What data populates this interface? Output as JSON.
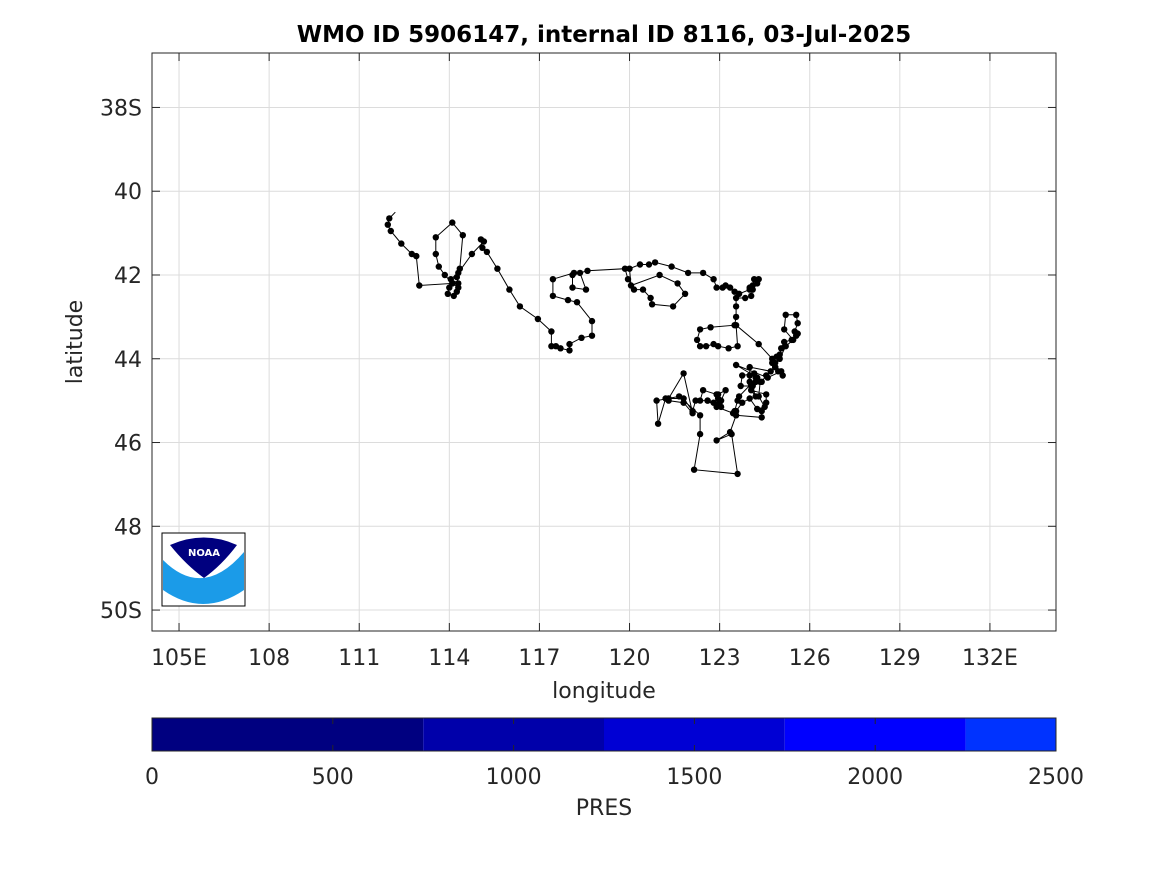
{
  "chart_data": {
    "type": "line",
    "title": "WMO ID 5906147, internal ID 8116, 03-Jul-2025",
    "xlabel": "longitude",
    "ylabel": "latitude",
    "xlim": [
      104.1,
      134.2
    ],
    "ylim": [
      50.5,
      36.7
    ],
    "y_axis_reversed": true,
    "x_ticks": [
      105,
      108,
      111,
      114,
      117,
      120,
      123,
      126,
      129,
      132
    ],
    "x_tick_labels": [
      "105E",
      "108",
      "111",
      "114",
      "117",
      "120",
      "123",
      "126",
      "129",
      "132E"
    ],
    "y_ticks": [
      38,
      40,
      42,
      44,
      46,
      48,
      50
    ],
    "y_tick_labels": [
      "38S",
      "40",
      "42",
      "44",
      "46",
      "48",
      "50S"
    ],
    "grid": true,
    "series": [
      {
        "marker": "dot",
        "color": "#000000",
        "points": [
          [
            112.2,
            40.5
          ],
          [
            112.0,
            40.65
          ],
          [
            111.95,
            40.8
          ],
          [
            112.05,
            40.95
          ],
          [
            112.4,
            41.25
          ],
          [
            112.75,
            41.5
          ],
          [
            112.9,
            41.55
          ],
          [
            113.0,
            42.25
          ],
          [
            114.1,
            42.2
          ],
          [
            114.0,
            42.3
          ],
          [
            113.95,
            42.45
          ],
          [
            114.15,
            42.5
          ],
          [
            114.25,
            42.4
          ],
          [
            114.3,
            42.3
          ],
          [
            114.1,
            42.2
          ],
          [
            113.85,
            42.0
          ],
          [
            113.65,
            41.8
          ],
          [
            113.55,
            41.5
          ],
          [
            113.55,
            41.1
          ],
          [
            114.1,
            40.75
          ],
          [
            114.45,
            41.05
          ],
          [
            114.35,
            41.85
          ],
          [
            114.25,
            42.05
          ],
          [
            114.3,
            42.2
          ],
          [
            114.05,
            42.1
          ],
          [
            114.3,
            41.95
          ],
          [
            114.75,
            41.5
          ],
          [
            115.15,
            41.2
          ],
          [
            115.05,
            41.15
          ],
          [
            115.1,
            41.35
          ],
          [
            115.25,
            41.45
          ],
          [
            115.6,
            41.85
          ],
          [
            116.0,
            42.35
          ],
          [
            116.35,
            42.75
          ],
          [
            116.95,
            43.05
          ],
          [
            117.4,
            43.35
          ],
          [
            117.4,
            43.7
          ],
          [
            117.55,
            43.7
          ],
          [
            117.7,
            43.75
          ],
          [
            118.0,
            43.8
          ],
          [
            118.0,
            43.65
          ],
          [
            118.4,
            43.5
          ],
          [
            118.75,
            43.45
          ],
          [
            118.75,
            43.1
          ],
          [
            118.25,
            42.65
          ],
          [
            117.95,
            42.6
          ],
          [
            117.45,
            42.5
          ],
          [
            117.45,
            42.1
          ],
          [
            118.15,
            41.95
          ],
          [
            118.35,
            41.95
          ],
          [
            118.55,
            42.35
          ],
          [
            118.1,
            42.3
          ],
          [
            118.1,
            42.0
          ],
          [
            118.6,
            41.9
          ],
          [
            119.85,
            41.85
          ],
          [
            119.95,
            42.1
          ],
          [
            120.15,
            42.35
          ],
          [
            120.45,
            42.35
          ],
          [
            120.7,
            42.55
          ],
          [
            120.75,
            42.7
          ],
          [
            121.45,
            42.75
          ],
          [
            121.85,
            42.45
          ],
          [
            121.6,
            42.2
          ],
          [
            121.0,
            42.0
          ],
          [
            120.05,
            42.25
          ],
          [
            120.0,
            41.85
          ],
          [
            120.35,
            41.75
          ],
          [
            120.65,
            41.75
          ],
          [
            120.85,
            41.7
          ],
          [
            121.4,
            41.8
          ],
          [
            121.95,
            41.95
          ],
          [
            122.45,
            41.95
          ],
          [
            122.8,
            42.1
          ],
          [
            122.9,
            42.3
          ],
          [
            123.1,
            42.3
          ],
          [
            123.2,
            42.25
          ],
          [
            123.35,
            42.3
          ],
          [
            123.5,
            42.4
          ],
          [
            123.65,
            42.45
          ],
          [
            124.0,
            42.35
          ],
          [
            124.1,
            42.25
          ],
          [
            124.15,
            42.1
          ],
          [
            124.25,
            42.2
          ],
          [
            124.3,
            42.1
          ],
          [
            124.0,
            42.3
          ],
          [
            124.1,
            42.35
          ],
          [
            124.05,
            42.5
          ],
          [
            123.85,
            42.55
          ],
          [
            123.55,
            42.55
          ],
          [
            123.55,
            42.75
          ],
          [
            123.55,
            43.0
          ],
          [
            123.5,
            43.2
          ],
          [
            122.7,
            43.25
          ],
          [
            122.35,
            43.3
          ],
          [
            122.25,
            43.55
          ],
          [
            122.35,
            43.7
          ],
          [
            122.55,
            43.7
          ],
          [
            122.8,
            43.65
          ],
          [
            122.95,
            43.7
          ],
          [
            123.3,
            43.75
          ],
          [
            123.6,
            43.7
          ],
          [
            123.55,
            43.2
          ],
          [
            124.3,
            43.65
          ],
          [
            124.75,
            44.0
          ],
          [
            124.85,
            44.2
          ],
          [
            124.7,
            44.3
          ],
          [
            124.0,
            44.2
          ],
          [
            124.0,
            44.4
          ],
          [
            124.0,
            44.55
          ],
          [
            124.05,
            44.65
          ],
          [
            123.7,
            44.65
          ],
          [
            123.75,
            44.4
          ],
          [
            124.15,
            44.35
          ],
          [
            124.2,
            44.45
          ],
          [
            124.1,
            44.65
          ],
          [
            124.4,
            44.55
          ],
          [
            124.55,
            44.4
          ],
          [
            124.85,
            44.2
          ],
          [
            124.75,
            44.1
          ],
          [
            124.9,
            43.95
          ],
          [
            125.0,
            43.9
          ],
          [
            125.05,
            43.75
          ],
          [
            125.15,
            43.6
          ],
          [
            125.4,
            43.55
          ],
          [
            125.55,
            43.45
          ],
          [
            125.6,
            43.4
          ],
          [
            125.5,
            43.35
          ],
          [
            125.6,
            43.15
          ],
          [
            125.55,
            42.95
          ],
          [
            125.2,
            42.95
          ],
          [
            125.15,
            43.3
          ],
          [
            125.45,
            43.55
          ],
          [
            125.2,
            43.7
          ],
          [
            125.0,
            44.0
          ],
          [
            124.85,
            44.1
          ],
          [
            124.95,
            44.3
          ],
          [
            125.1,
            44.4
          ],
          [
            125.05,
            44.3
          ],
          [
            124.6,
            44.45
          ],
          [
            123.55,
            44.15
          ],
          [
            124.25,
            44.45
          ],
          [
            124.2,
            44.55
          ],
          [
            124.35,
            44.55
          ],
          [
            124.3,
            44.9
          ],
          [
            124.5,
            45.15
          ],
          [
            124.25,
            45.2
          ],
          [
            124.0,
            44.95
          ],
          [
            123.75,
            45.05
          ],
          [
            123.55,
            45.25
          ],
          [
            123.45,
            45.3
          ],
          [
            122.9,
            45.15
          ],
          [
            122.6,
            45.0
          ],
          [
            122.35,
            45.0
          ],
          [
            122.45,
            44.75
          ],
          [
            122.9,
            44.85
          ],
          [
            122.95,
            44.95
          ],
          [
            122.8,
            45.05
          ],
          [
            123.05,
            45.15
          ],
          [
            123.0,
            45.05
          ],
          [
            122.95,
            44.85
          ],
          [
            123.2,
            44.75
          ],
          [
            123.05,
            45.0
          ],
          [
            122.9,
            45.1
          ],
          [
            122.6,
            45.0
          ],
          [
            122.2,
            45.0
          ],
          [
            122.1,
            45.25
          ],
          [
            121.8,
            44.95
          ],
          [
            121.3,
            44.95
          ],
          [
            121.8,
            44.35
          ],
          [
            122.1,
            45.3
          ],
          [
            121.8,
            45.05
          ],
          [
            121.3,
            45.0
          ],
          [
            121.2,
            44.95
          ],
          [
            120.95,
            45.55
          ],
          [
            120.9,
            45.0
          ],
          [
            121.65,
            44.9
          ],
          [
            122.35,
            45.35
          ],
          [
            122.35,
            45.8
          ],
          [
            122.15,
            46.65
          ],
          [
            123.6,
            46.75
          ],
          [
            123.4,
            45.8
          ],
          [
            122.9,
            45.95
          ],
          [
            123.35,
            45.75
          ],
          [
            123.55,
            45.35
          ],
          [
            124.4,
            45.4
          ],
          [
            124.4,
            45.25
          ],
          [
            124.55,
            45.05
          ],
          [
            124.55,
            44.85
          ],
          [
            124.05,
            44.75
          ],
          [
            124.2,
            44.9
          ],
          [
            124.05,
            44.6
          ],
          [
            123.65,
            44.9
          ],
          [
            123.6,
            45.0
          ],
          [
            123.5,
            45.25
          ]
        ]
      }
    ],
    "colorbar": {
      "label": "PRES",
      "range": [
        0,
        2500
      ],
      "ticks": [
        0,
        500,
        1000,
        1500,
        2000,
        2500
      ],
      "bands": [
        {
          "from": 0,
          "to": 750,
          "color": "#000080"
        },
        {
          "from": 750,
          "to": 1250,
          "color": "#0000aa"
        },
        {
          "from": 1250,
          "to": 1750,
          "color": "#0000d4"
        },
        {
          "from": 1750,
          "to": 2250,
          "color": "#0000ff"
        },
        {
          "from": 2250,
          "to": 2500,
          "color": "#0033ff"
        }
      ]
    },
    "logo": {
      "text": "NOAA",
      "colors": {
        "navy": "#00007f",
        "sky": "#1b9be8"
      }
    }
  }
}
